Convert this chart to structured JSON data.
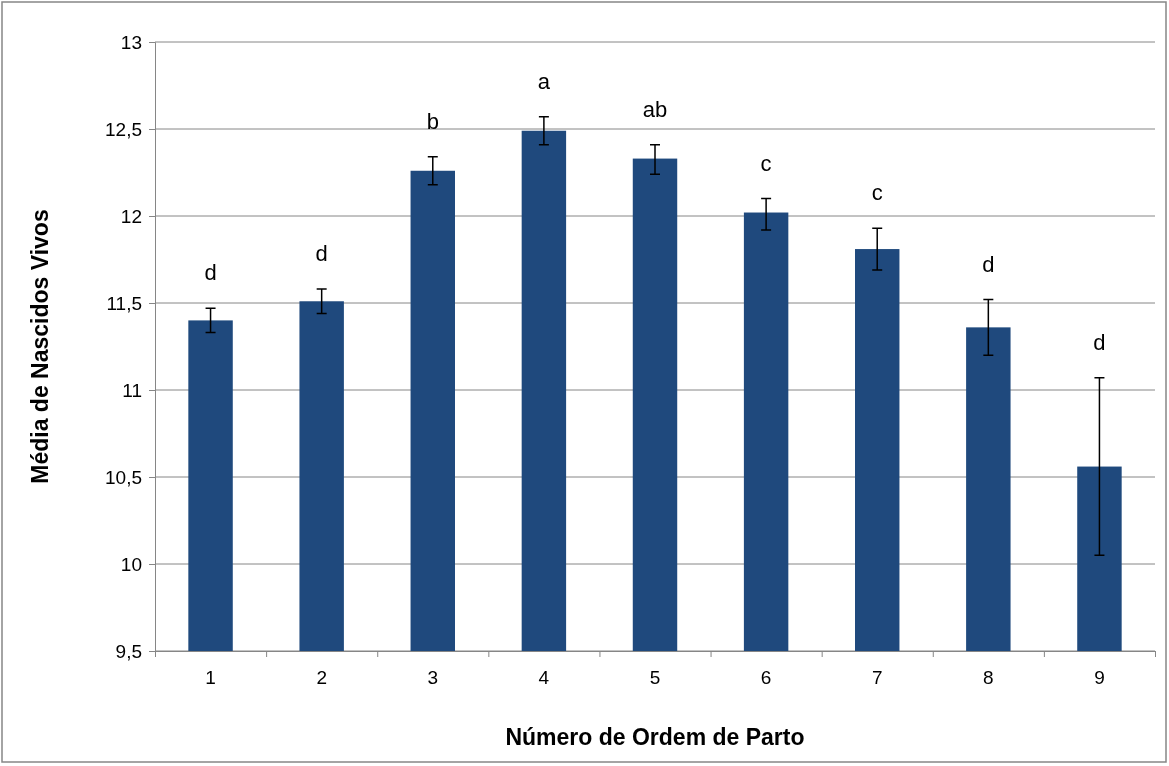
{
  "chart_data": {
    "type": "bar",
    "xlabel": "Número de Ordem de Parto",
    "ylabel": "Média de Nascidos Vivos",
    "categories": [
      "1",
      "2",
      "3",
      "4",
      "5",
      "6",
      "7",
      "8",
      "9"
    ],
    "values": [
      11.4,
      11.51,
      12.26,
      12.49,
      12.33,
      12.02,
      11.81,
      11.36,
      10.56
    ],
    "errors": [
      [
        11.33,
        11.47
      ],
      [
        11.44,
        11.58
      ],
      [
        12.18,
        12.34
      ],
      [
        12.41,
        12.57
      ],
      [
        12.24,
        12.41
      ],
      [
        11.92,
        12.1
      ],
      [
        11.69,
        11.93
      ],
      [
        11.2,
        11.52
      ],
      [
        10.05,
        11.07
      ]
    ],
    "color": "#1f497d",
    "ylim": [
      9.5,
      13
    ],
    "yticks": [
      {
        "value": 9.5,
        "label": "9,5"
      },
      {
        "value": 10,
        "label": "10"
      },
      {
        "value": 10.5,
        "label": "10,5"
      },
      {
        "value": 11,
        "label": "11"
      },
      {
        "value": 11.5,
        "label": "11,5"
      },
      {
        "value": 12,
        "label": "12"
      },
      {
        "value": 12.5,
        "label": "12,5"
      },
      {
        "value": 13,
        "label": "13"
      }
    ],
    "grid": "y",
    "annotations": [
      "d",
      "d",
      "b",
      "a",
      "ab",
      "c",
      "c",
      "d",
      "d"
    ]
  }
}
